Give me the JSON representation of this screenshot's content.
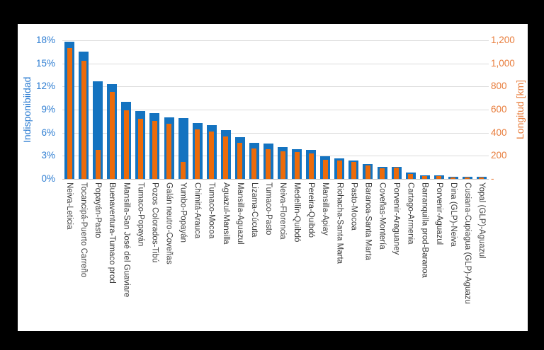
{
  "colors": {
    "background": "#000000",
    "panel": "#ffffff",
    "bar_blue": "#1473c0",
    "bar_orange": "#ec6b0a",
    "left_axis_text": "#2d7dd2",
    "right_axis_text": "#e87d3c",
    "category_text": "#3c3c3c",
    "gridline": "#dcdcdc"
  },
  "chart_data": {
    "type": "bar",
    "title": "",
    "grid": true,
    "legend": false,
    "categories": [
      "Neiva-Leticia",
      "Tocancipá-Puerto Carreño",
      "Popayán-Pasto",
      "Buenaventura-Tumaco prod",
      "Mansilla-San José del Guaviare",
      "Tumaco-Popayán",
      "Pozos Colorados-Tibú",
      "Galán neutro-Coveñas",
      "Yumbo-Popayán",
      "Chimitá-Arauca",
      "Tumaco-Mocoa",
      "Aguazul-Mansilla",
      "Mansilla-Aguazul",
      "Lizama-Cúcuta",
      "Tumaco-Pasto",
      "Neiva-Florencia",
      "Medellín-Quibdó",
      "Pereira-Quibdó",
      "Mansilla-Apiay",
      "Riohacha-Santa Marta",
      "Pasto-Mocoa",
      "Baranoa-Santa Marta",
      "Coveñas-Montería",
      "Porvenir-Araguaney",
      "Cartago-Armenia",
      "Barranquilla prod-Baranoa",
      "Porvenir-Aguazul",
      "Dina (GLP)-Neiva",
      "Cusiana-Cupiagua (GLP)-Aguazu",
      "Yopal (GLP)-Aguazul"
    ],
    "series": [
      {
        "name": "Indisponibiidad",
        "axis": "left",
        "unit": "%",
        "values": [
          17.8,
          16.5,
          12.7,
          12.3,
          10.0,
          8.8,
          8.5,
          8.0,
          7.9,
          7.3,
          7.0,
          6.3,
          5.4,
          4.65,
          4.6,
          4.15,
          3.9,
          3.8,
          2.9,
          2.7,
          2.4,
          1.9,
          1.6,
          1.6,
          0.8,
          0.5,
          0.5,
          0.3,
          0.3,
          0.25
        ]
      },
      {
        "name": "Longitud [km]",
        "axis": "right",
        "unit": "km",
        "values": [
          1130,
          1020,
          250,
          755,
          595,
          520,
          505,
          475,
          145,
          430,
          410,
          370,
          310,
          265,
          260,
          240,
          230,
          220,
          165,
          160,
          145,
          115,
          90,
          95,
          40,
          25,
          25,
          15,
          12,
          10
        ]
      }
    ],
    "left_axis": {
      "label": "Indisponibiidad",
      "min": 0,
      "max": 18,
      "ticks": [
        "0%",
        "3%",
        "6%",
        "9%",
        "12%",
        "15%",
        "18%"
      ]
    },
    "right_axis": {
      "label": "Longitud [km]",
      "min": 0,
      "max": 1200,
      "ticks": [
        "-",
        "200",
        "400",
        "600",
        "800",
        "1,000",
        "1,200"
      ]
    }
  }
}
